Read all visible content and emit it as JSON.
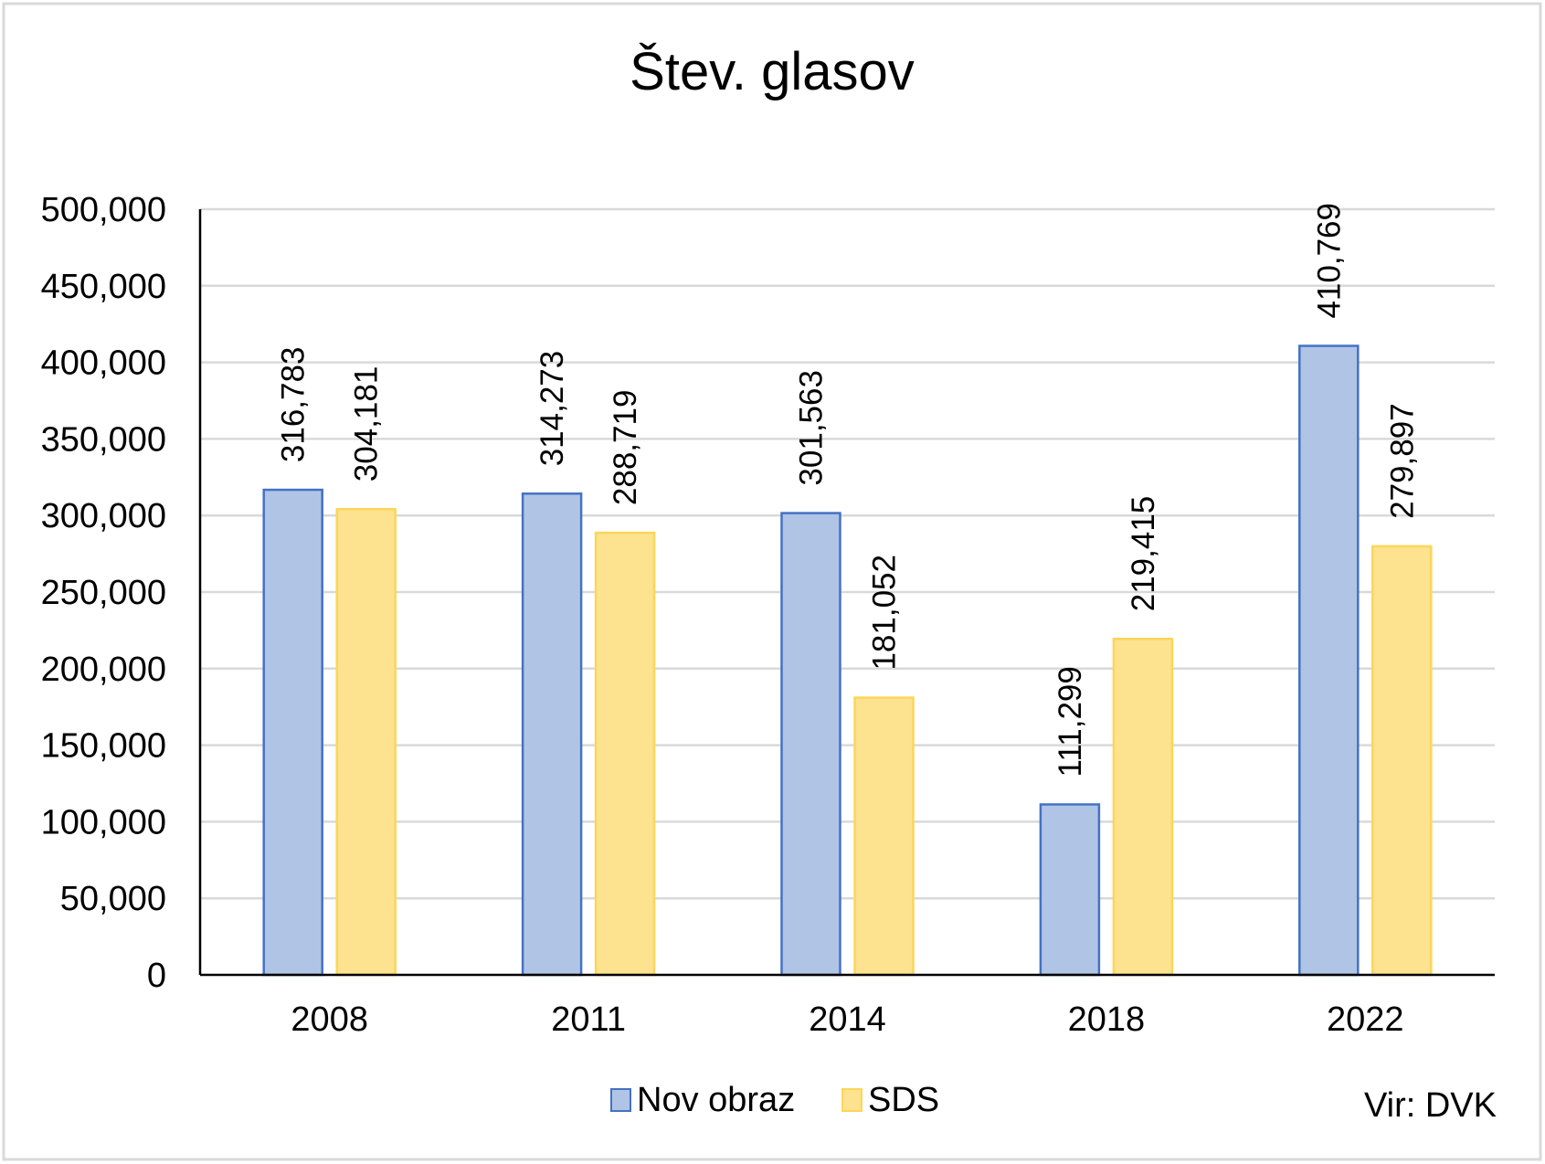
{
  "chart_data": {
    "type": "bar",
    "title": "Štev. glasov",
    "xlabel": "",
    "ylabel": "",
    "categories": [
      "2008",
      "2011",
      "2014",
      "2018",
      "2022"
    ],
    "series": [
      {
        "name": "Nov obraz",
        "values": [
          316783,
          314273,
          301563,
          111299,
          410769
        ],
        "labels": [
          "316,783",
          "314,273",
          "301,563",
          "111,299",
          "410,769"
        ],
        "fill": "#b0c4e6",
        "stroke": "#4472c4"
      },
      {
        "name": "SDS",
        "values": [
          304181,
          288719,
          181052,
          219415,
          279897
        ],
        "labels": [
          "304,181",
          "288,719",
          "181,052",
          "219,415",
          "279,897"
        ],
        "fill": "#fde28f",
        "stroke": "#fcd65a"
      }
    ],
    "ylim": [
      0,
      500000
    ],
    "yticks": [
      0,
      50000,
      100000,
      150000,
      200000,
      250000,
      300000,
      350000,
      400000,
      450000,
      500000
    ],
    "ytick_labels": [
      "0",
      "50,000",
      "100,000",
      "150,000",
      "200,000",
      "250,000",
      "300,000",
      "350,000",
      "400,000",
      "450,000",
      "500,000"
    ],
    "grid": true,
    "legend_position": "bottom-center",
    "source_note": "Vir: DVK"
  }
}
